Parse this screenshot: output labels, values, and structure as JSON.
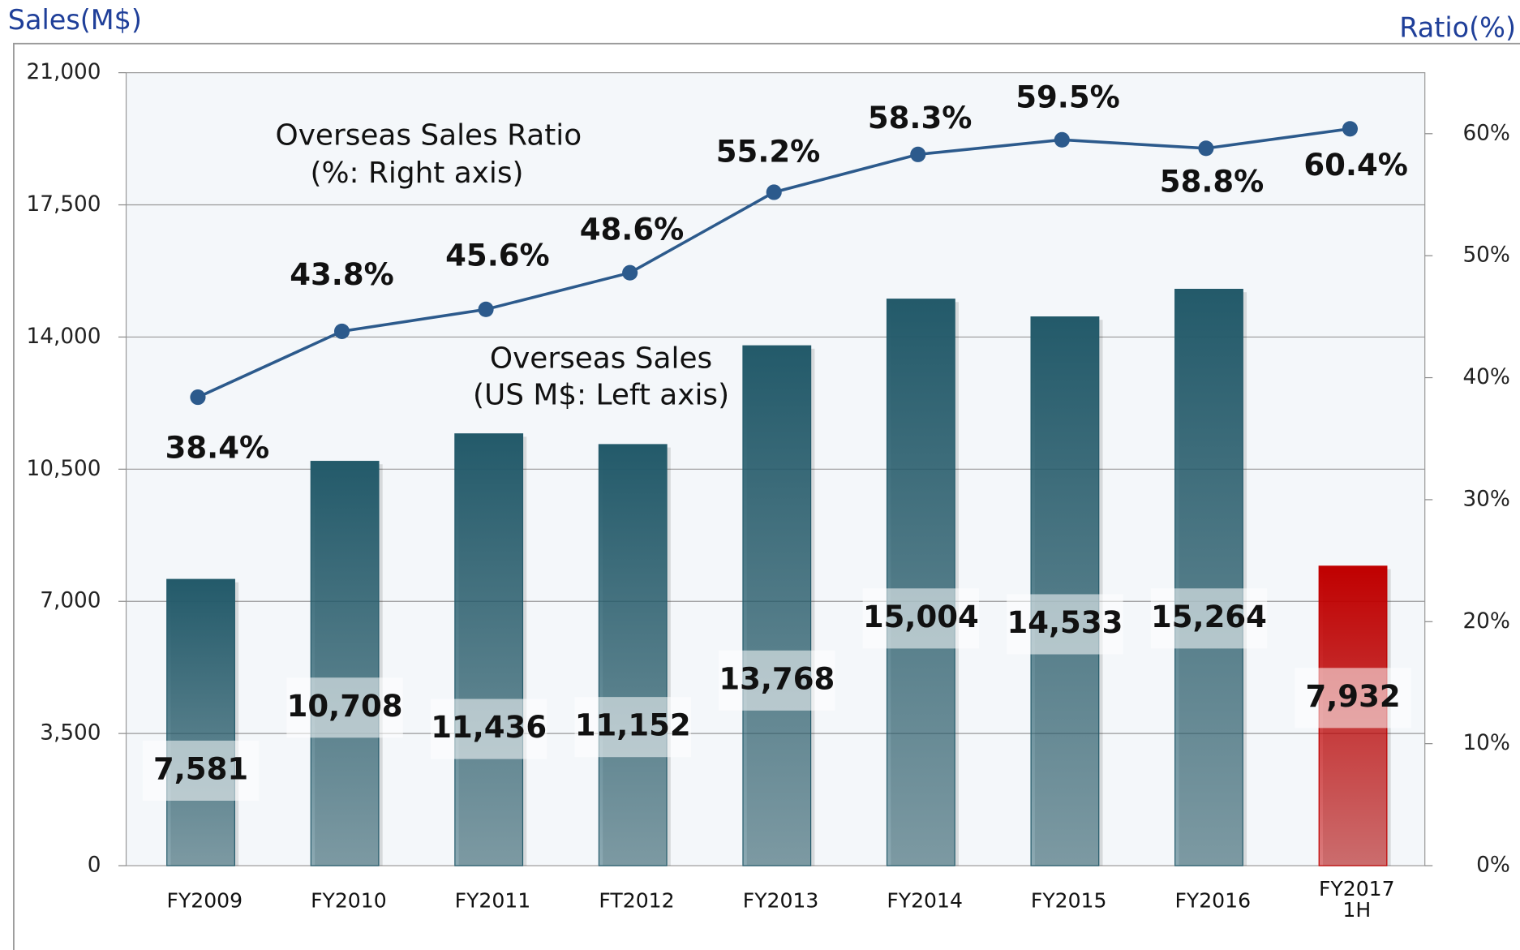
{
  "chart_data": {
    "type": "bar",
    "y_axis_label": "Sales(M$)",
    "y2_axis_label": "Ratio(%)",
    "annotations": [
      "Overseas Sales Ratio",
      "(%: Right axis)",
      "Overseas Sales",
      "(US M$: Left axis)"
    ],
    "categories": [
      "FY2009",
      "FY2010",
      "FY2011",
      "FT2012",
      "FY2013",
      "FY2014",
      "FY2015",
      "FY2016",
      "FY2017 1H"
    ],
    "series": [
      {
        "name": "Overseas Sales",
        "type": "bar",
        "colors": [
          "#235a6a",
          "#235a6a",
          "#235a6a",
          "#235a6a",
          "#235a6a",
          "#235a6a",
          "#235a6a",
          "#235a6a",
          "#c00000"
        ],
        "values": [
          7581,
          10708,
          11436,
          11152,
          13768,
          15004,
          14533,
          15264,
          7932
        ],
        "value_labels": [
          "7,581",
          "10,708",
          "11,436",
          "11,152",
          "13,768",
          "15,004",
          "14,533",
          "15,264",
          "7,932"
        ]
      },
      {
        "name": "Overseas Sales Ratio",
        "type": "line",
        "axis": "y2",
        "color": "#2c5a8c",
        "values": [
          38.4,
          43.8,
          45.6,
          48.6,
          55.2,
          58.3,
          59.5,
          58.8,
          60.4
        ],
        "value_labels": [
          "38.4%",
          "43.8%",
          "45.6%",
          "48.6%",
          "55.2%",
          "58.3%",
          "59.5%",
          "58.8%",
          "60.4%"
        ]
      }
    ],
    "ylim": [
      0,
      21000
    ],
    "yticks": [
      0,
      {
        "value": 3500,
        "label": "3,500"
      },
      {
        "value": 7000,
        "label": "7,000"
      },
      {
        "value": 10500,
        "label": "10,500"
      },
      {
        "value": 14000,
        "label": "14,000"
      },
      {
        "value": 17500,
        "label": "17,500"
      },
      {
        "value": 21000,
        "label": "21,000"
      }
    ],
    "y2lim": [
      0,
      65
    ],
    "y2ticks": [
      {
        "value": 0,
        "label": "0%"
      },
      {
        "value": 10,
        "label": "10%"
      },
      {
        "value": 20,
        "label": "20%"
      },
      {
        "value": 30,
        "label": "30%"
      },
      {
        "value": 40,
        "label": "40%"
      },
      {
        "value": 50,
        "label": "50%"
      },
      {
        "value": 60,
        "label": "60%"
      }
    ],
    "grid": true
  }
}
